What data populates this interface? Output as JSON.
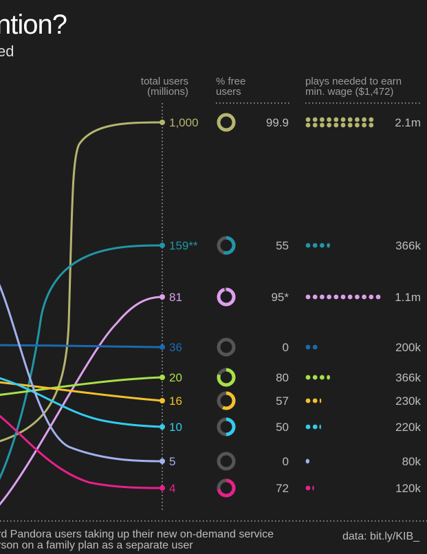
{
  "header": {
    "title": "ntion?",
    "subtitle": "ed"
  },
  "columns": {
    "total_users_line1": "total users",
    "total_users_line2": "(millions)",
    "free_line1": "% free",
    "free_line2": "users",
    "plays_line1": "plays needed to earn",
    "plays_line2": "min. wage ($1,472)"
  },
  "footnote": {
    "line1": "rd Pandora users taking up their new on-demand service",
    "line2": "rson on a family plan as a separate user",
    "source": "data: bit.ly/KIB_"
  },
  "chart_data": {
    "type": "table",
    "title": "ntion?",
    "rows": [
      {
        "users": 1000,
        "users_label": "1,000",
        "free_pct": 99.9,
        "free_label": "99.9",
        "plays": 2100000,
        "plays_label": "2.1m",
        "dots": 20,
        "color": "#b5b56f"
      },
      {
        "users": 159,
        "users_label": "159**",
        "free_pct": 55,
        "free_label": "55",
        "plays": 366000,
        "plays_label": "366k",
        "dots": 3.7,
        "color": "#2196a8"
      },
      {
        "users": 81,
        "users_label": "81",
        "free_pct": 95,
        "free_label": "95*",
        "plays": 1100000,
        "plays_label": "1.1m",
        "dots": 11,
        "color": "#dda0ee"
      },
      {
        "users": 36,
        "users_label": "36",
        "free_pct": 0,
        "free_label": "0",
        "plays": 200000,
        "plays_label": "200k",
        "dots": 2,
        "color": "#1a6ab0"
      },
      {
        "users": 20,
        "users_label": "20",
        "free_pct": 80,
        "free_label": "80",
        "plays": 366000,
        "plays_label": "366k",
        "dots": 3.7,
        "color": "#a8e04a"
      },
      {
        "users": 16,
        "users_label": "16",
        "free_pct": 57,
        "free_label": "57",
        "plays": 230000,
        "plays_label": "230k",
        "dots": 2.3,
        "color": "#f2c12e"
      },
      {
        "users": 10,
        "users_label": "10",
        "free_pct": 50,
        "free_label": "50",
        "plays": 220000,
        "plays_label": "220k",
        "dots": 2.2,
        "color": "#33ccee"
      },
      {
        "users": 5,
        "users_label": "5",
        "free_pct": 0,
        "free_label": "0",
        "plays": 80000,
        "plays_label": "80k",
        "dots": 0.8,
        "color": "#a4b1ee"
      },
      {
        "users": 4,
        "users_label": "4",
        "free_pct": 72,
        "free_label": "72",
        "plays": 120000,
        "plays_label": "120k",
        "dots": 1.2,
        "color": "#e8208c"
      }
    ]
  }
}
